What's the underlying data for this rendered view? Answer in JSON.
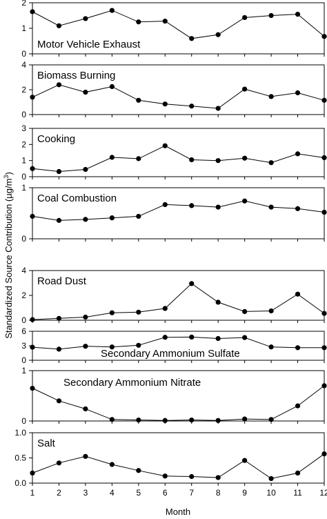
{
  "chart_data": {
    "type": "line",
    "ylabel_text": "Standardized Source Contribution (µg/m",
    "ylabel_sup": "3",
    "ylabel_tail": ")",
    "xlabel": "Month",
    "x": [
      1,
      2,
      3,
      4,
      5,
      6,
      7,
      8,
      9,
      10,
      11,
      12
    ],
    "x_tick_labels": [
      "1",
      "2",
      "3",
      "4",
      "5",
      "6",
      "7",
      "8",
      "9",
      "10",
      "11",
      "12"
    ],
    "xlim": [
      1,
      12
    ],
    "legend": "none",
    "grid": false,
    "marker_color": "#000000",
    "panels": [
      {
        "name": "Motor Vehicle Exhaust",
        "label_position": "bottom-left",
        "ylim": [
          0,
          2
        ],
        "yticks": [
          0,
          1,
          2
        ],
        "ytick_labels": [
          "0",
          "1",
          "2"
        ],
        "values": [
          1.65,
          1.1,
          1.38,
          1.7,
          1.25,
          1.28,
          0.6,
          0.75,
          1.42,
          1.5,
          1.55,
          0.68
        ]
      },
      {
        "name": "Biomass Burning",
        "label_position": "top-left",
        "ylim": [
          0,
          4
        ],
        "yticks": [
          0,
          2,
          4
        ],
        "ytick_labels": [
          "0",
          "2",
          "4"
        ],
        "values": [
          1.4,
          2.4,
          1.8,
          2.25,
          1.15,
          0.85,
          0.68,
          0.5,
          2.05,
          1.45,
          1.75,
          1.15
        ]
      },
      {
        "name": "Cooking",
        "label_position": "top-left",
        "ylim": [
          0,
          3
        ],
        "yticks": [
          0,
          1,
          2,
          3
        ],
        "ytick_labels": [
          "0",
          "1",
          "2",
          "3"
        ],
        "values": [
          0.5,
          0.32,
          0.45,
          1.2,
          1.12,
          1.92,
          1.05,
          1.0,
          1.15,
          0.87,
          1.42,
          1.18
        ]
      },
      {
        "name": "Coal Combustion",
        "label_position": "top-left",
        "ylim": [
          0,
          1
        ],
        "yticks": [
          0,
          1
        ],
        "ytick_labels": [
          "0",
          "1"
        ],
        "values": [
          0.44,
          0.36,
          0.38,
          0.41,
          0.44,
          0.67,
          0.65,
          0.62,
          0.74,
          0.62,
          0.59,
          0.52
        ]
      },
      {
        "name": "Road Dust",
        "label_position": "top-left",
        "ylim": [
          0,
          4
        ],
        "yticks": [
          0,
          2,
          4
        ],
        "ytick_labels": [
          "0",
          "2",
          "4"
        ],
        "values": [
          0.05,
          0.15,
          0.25,
          0.6,
          0.65,
          0.95,
          2.95,
          1.45,
          0.7,
          0.75,
          2.1,
          0.55
        ]
      },
      {
        "name": "Secondary Ammonium Sulfate",
        "label_position": "bottom-center",
        "ylim": [
          0,
          6
        ],
        "yticks": [
          0,
          3,
          6
        ],
        "ytick_labels": [
          "0",
          "3",
          "6"
        ],
        "values": [
          2.7,
          2.3,
          2.9,
          2.75,
          3.1,
          4.75,
          4.8,
          4.5,
          4.7,
          2.75,
          2.6,
          2.6
        ]
      },
      {
        "name": "Secondary Ammonium Nitrate",
        "label_position": "top-center",
        "ylim": [
          0,
          1
        ],
        "yticks": [
          0,
          1
        ],
        "ytick_labels": [
          "0",
          "1"
        ],
        "values": [
          0.65,
          0.4,
          0.24,
          0.03,
          0.02,
          0.01,
          0.02,
          0.01,
          0.04,
          0.03,
          0.3,
          0.7
        ]
      },
      {
        "name": "Salt",
        "label_position": "top-left",
        "ylim": [
          0,
          1
        ],
        "yticks": [
          0,
          0.5,
          1.0
        ],
        "ytick_labels": [
          "0.0",
          "0.5",
          "1.0"
        ],
        "values": [
          0.2,
          0.4,
          0.53,
          0.37,
          0.25,
          0.14,
          0.13,
          0.11,
          0.45,
          0.09,
          0.2,
          0.58
        ]
      }
    ]
  }
}
